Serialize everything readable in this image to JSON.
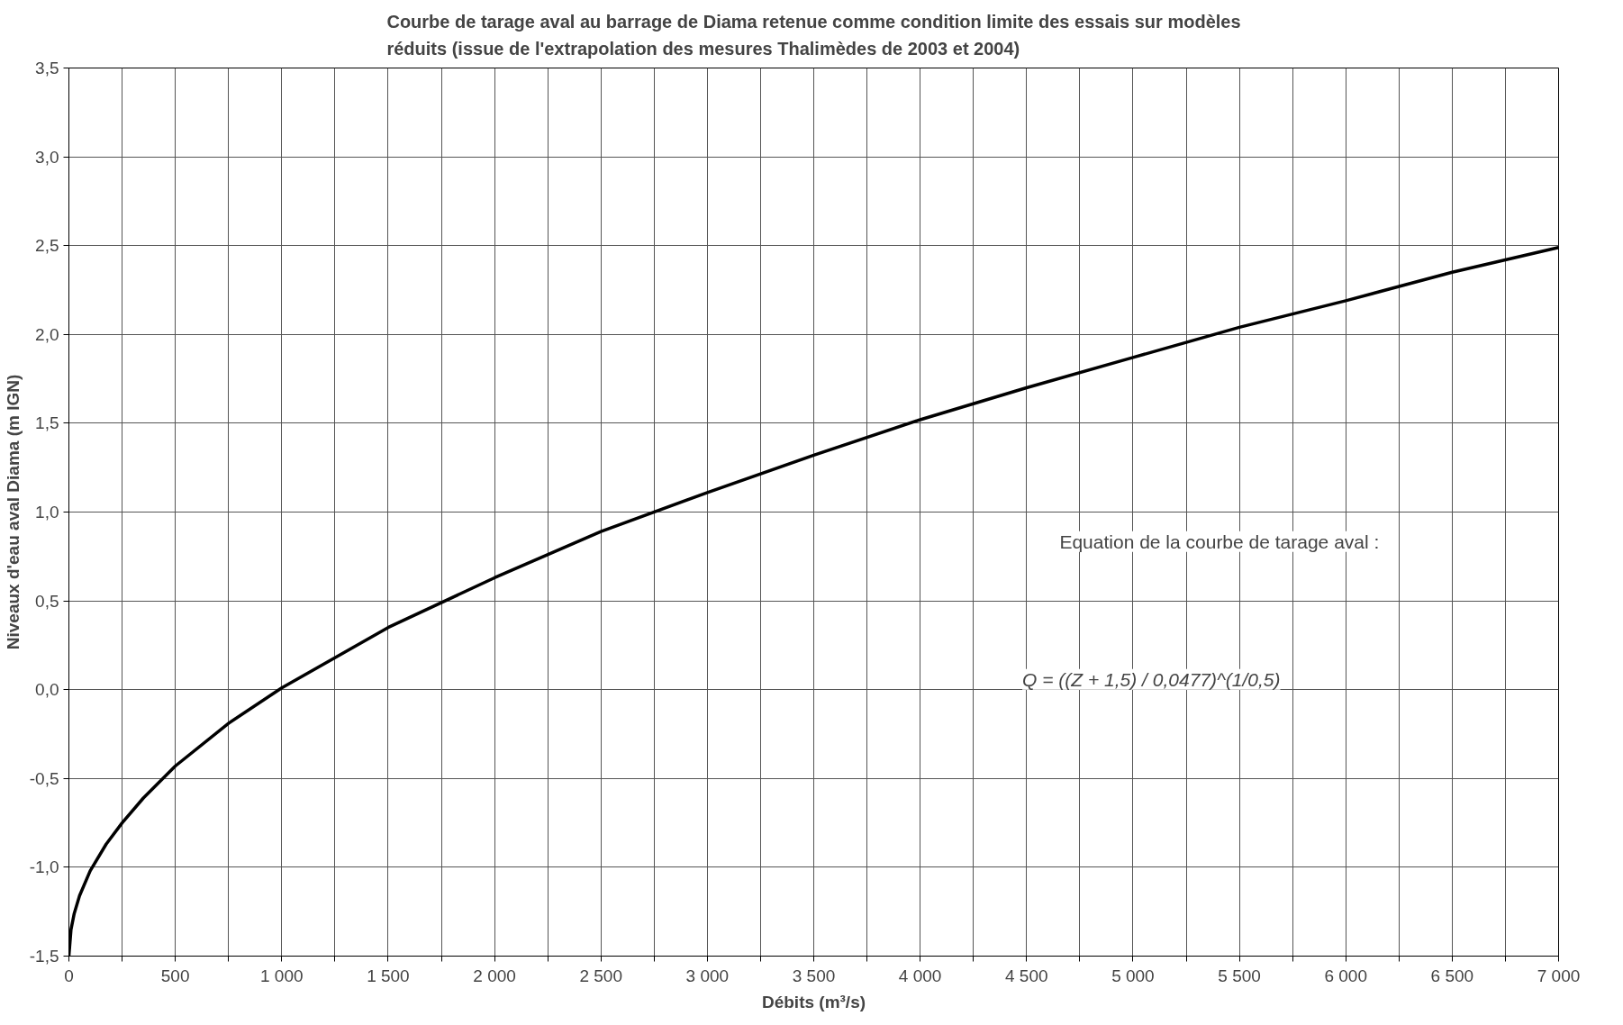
{
  "chart_data": {
    "type": "line",
    "title": "Courbe de tarage aval au barrage de Diama retenue comme condition limite des essais sur modèles\nréduits (issue de l'extrapolation des mesures Thalimèdes de 2003 et 2004)",
    "xlabel": "Débits (m³/s)",
    "ylabel": "Niveaux d'eau aval Diama (m IGN)",
    "x": [
      0,
      10,
      25,
      50,
      100,
      175,
      250,
      350,
      500,
      750,
      1000,
      1500,
      2000,
      2500,
      3000,
      3500,
      4000,
      4500,
      5000,
      5500,
      6000,
      6500,
      7000
    ],
    "series": [
      {
        "color": "#000000",
        "values": [
          -1.5,
          -1.35,
          -1.26,
          -1.16,
          -1.02,
          -0.87,
          -0.75,
          -0.61,
          -0.43,
          -0.19,
          0.01,
          0.35,
          0.63,
          0.89,
          1.11,
          1.32,
          1.52,
          1.7,
          1.87,
          2.04,
          2.19,
          2.35,
          2.49
        ]
      }
    ],
    "xlim": [
      0,
      7000
    ],
    "ylim": [
      -1.5,
      3.5
    ],
    "xticks": [
      0,
      {
        "value": 250,
        "label": null
      },
      500,
      {
        "value": 750,
        "label": null
      },
      {
        "value": 1000,
        "label": "1 000"
      },
      {
        "value": 1250,
        "label": null
      },
      {
        "value": 1500,
        "label": "1 500"
      },
      {
        "value": 1750,
        "label": null
      },
      {
        "value": 2000,
        "label": "2 000"
      },
      {
        "value": 2250,
        "label": null
      },
      {
        "value": 2500,
        "label": "2 500"
      },
      {
        "value": 2750,
        "label": null
      },
      {
        "value": 3000,
        "label": "3 000"
      },
      {
        "value": 3250,
        "label": null
      },
      {
        "value": 3500,
        "label": "3 500"
      },
      {
        "value": 3750,
        "label": null
      },
      {
        "value": 4000,
        "label": "4 000"
      },
      {
        "value": 4250,
        "label": null
      },
      {
        "value": 4500,
        "label": "4 500"
      },
      {
        "value": 4750,
        "label": null
      },
      {
        "value": 5000,
        "label": "5 000"
      },
      {
        "value": 5250,
        "label": null
      },
      {
        "value": 5500,
        "label": "5 500"
      },
      {
        "value": 5750,
        "label": null
      },
      {
        "value": 6000,
        "label": "6 000"
      },
      {
        "value": 6250,
        "label": null
      },
      {
        "value": 6500,
        "label": "6 500"
      },
      {
        "value": 6750,
        "label": null
      },
      {
        "value": 7000,
        "label": "7 000"
      }
    ],
    "yticks": [
      {
        "value": -1.5,
        "label": "-1,5"
      },
      {
        "value": -1.0,
        "label": "-1,0"
      },
      {
        "value": -0.5,
        "label": "-0,5"
      },
      {
        "value": 0.0,
        "label": "0,0"
      },
      {
        "value": 0.5,
        "label": "0,5"
      },
      {
        "value": 1.0,
        "label": "1,0"
      },
      {
        "value": 1.5,
        "label": "1,5"
      },
      {
        "value": 2.0,
        "label": "2,0"
      },
      {
        "value": 2.5,
        "label": "2,5"
      },
      {
        "value": 3.0,
        "label": "3,0"
      },
      {
        "value": 3.5,
        "label": "3,5"
      }
    ],
    "grid": true,
    "marker": "none",
    "line_style": "solid",
    "annotations": [
      "Equation de la courbe de tarage aval :",
      "Q = ((Z + 1,5) / 0,0477)^(1/0,5)"
    ]
  }
}
